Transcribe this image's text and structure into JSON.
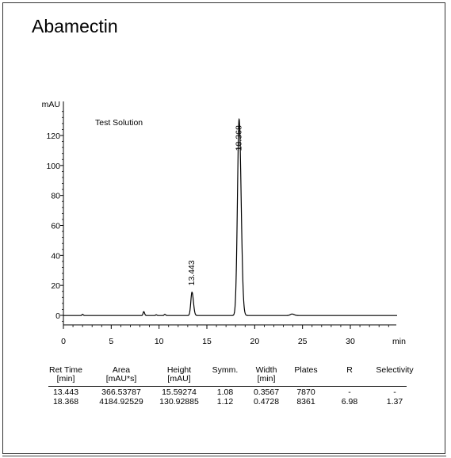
{
  "title": "Abamectin",
  "chart_data": {
    "type": "line",
    "ylabel": "mAU",
    "xlabel": "min",
    "xlim": [
      0,
      35
    ],
    "ylim": [
      -5,
      142
    ],
    "xticks": [
      0,
      5,
      10,
      15,
      20,
      25,
      30
    ],
    "yticks": [
      0,
      20,
      40,
      60,
      80,
      100,
      120
    ],
    "annotation": "Test Solution",
    "series": [
      {
        "peaks": [
          {
            "rt": 2.0,
            "height": 0.8,
            "sigma": 0.06
          },
          {
            "rt": 8.4,
            "height": 2.6,
            "sigma": 0.07
          },
          {
            "rt": 9.7,
            "height": 0.5,
            "sigma": 0.06
          },
          {
            "rt": 10.6,
            "height": 0.8,
            "sigma": 0.07
          },
          {
            "rt": 13.443,
            "height": 15.59274,
            "sigma": 0.12
          },
          {
            "rt": 18.368,
            "height": 130.92885,
            "sigma": 0.17
          },
          {
            "rt": 23.9,
            "height": 1.0,
            "sigma": 0.18
          }
        ]
      }
    ],
    "peak_labels": [
      {
        "x": 13.443,
        "y": 15.59274,
        "text": "13.443"
      },
      {
        "x": 18.368,
        "y": 130.92885,
        "text": "18.368"
      }
    ]
  },
  "table": {
    "headers": [
      [
        "Ret Time",
        "[min]"
      ],
      [
        "Area",
        "[mAU*s]"
      ],
      [
        "Height",
        "[mAU]"
      ],
      [
        "Symm.",
        ""
      ],
      [
        "Width",
        "[min]"
      ],
      [
        "Plates",
        ""
      ],
      [
        "R",
        ""
      ],
      [
        "Selectivity",
        ""
      ]
    ],
    "rows": [
      [
        "13.443",
        "366.53787",
        "15.59274",
        "1.08",
        "0.3567",
        "7870",
        "-",
        "-"
      ],
      [
        "18.368",
        "4184.92529",
        "130.92885",
        "1.12",
        "0.4728",
        "8361",
        "6.98",
        "1.37"
      ]
    ]
  }
}
